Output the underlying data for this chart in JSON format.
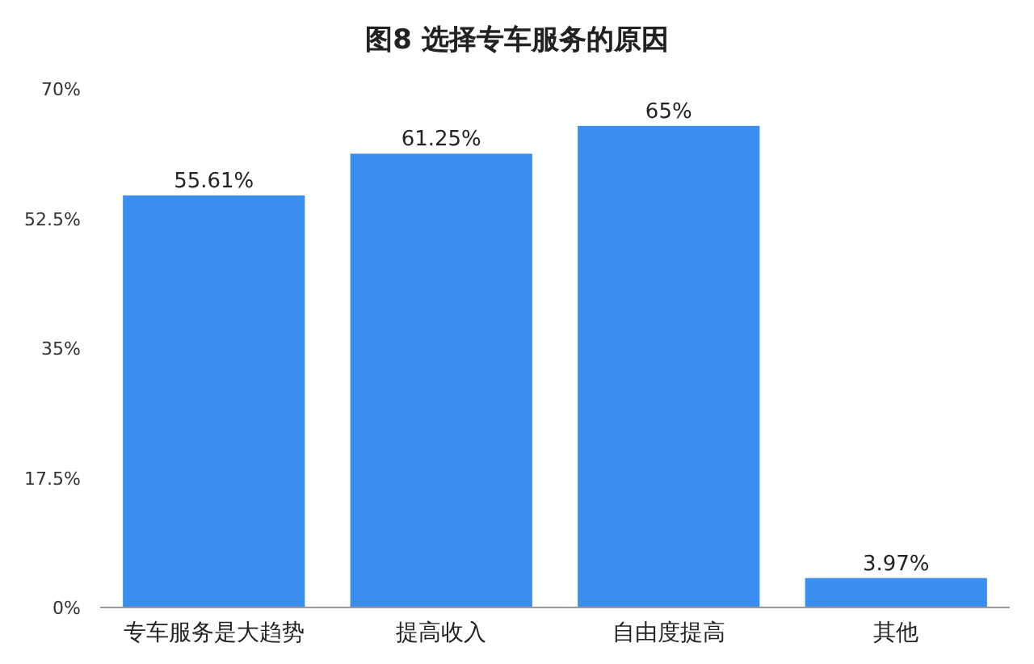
{
  "chart_data": {
    "type": "bar",
    "title": "图8 选择专车服务的原因",
    "categories": [
      "专车服务是大趋势",
      "提高收入",
      "自由度提高",
      "其他"
    ],
    "values": [
      55.61,
      61.25,
      65,
      3.97
    ],
    "value_labels": [
      "55.61%",
      "61.25%",
      "65%",
      "3.97%"
    ],
    "color": "#3a8ef0",
    "ylim": [
      0,
      70
    ],
    "yticks": [
      {
        "value": 0,
        "label": "0%"
      },
      {
        "value": 17.5,
        "label": "17.5%"
      },
      {
        "value": 35,
        "label": "35%"
      },
      {
        "value": 52.5,
        "label": "52.5%"
      },
      {
        "value": 70,
        "label": "70%"
      }
    ],
    "grid": false
  }
}
